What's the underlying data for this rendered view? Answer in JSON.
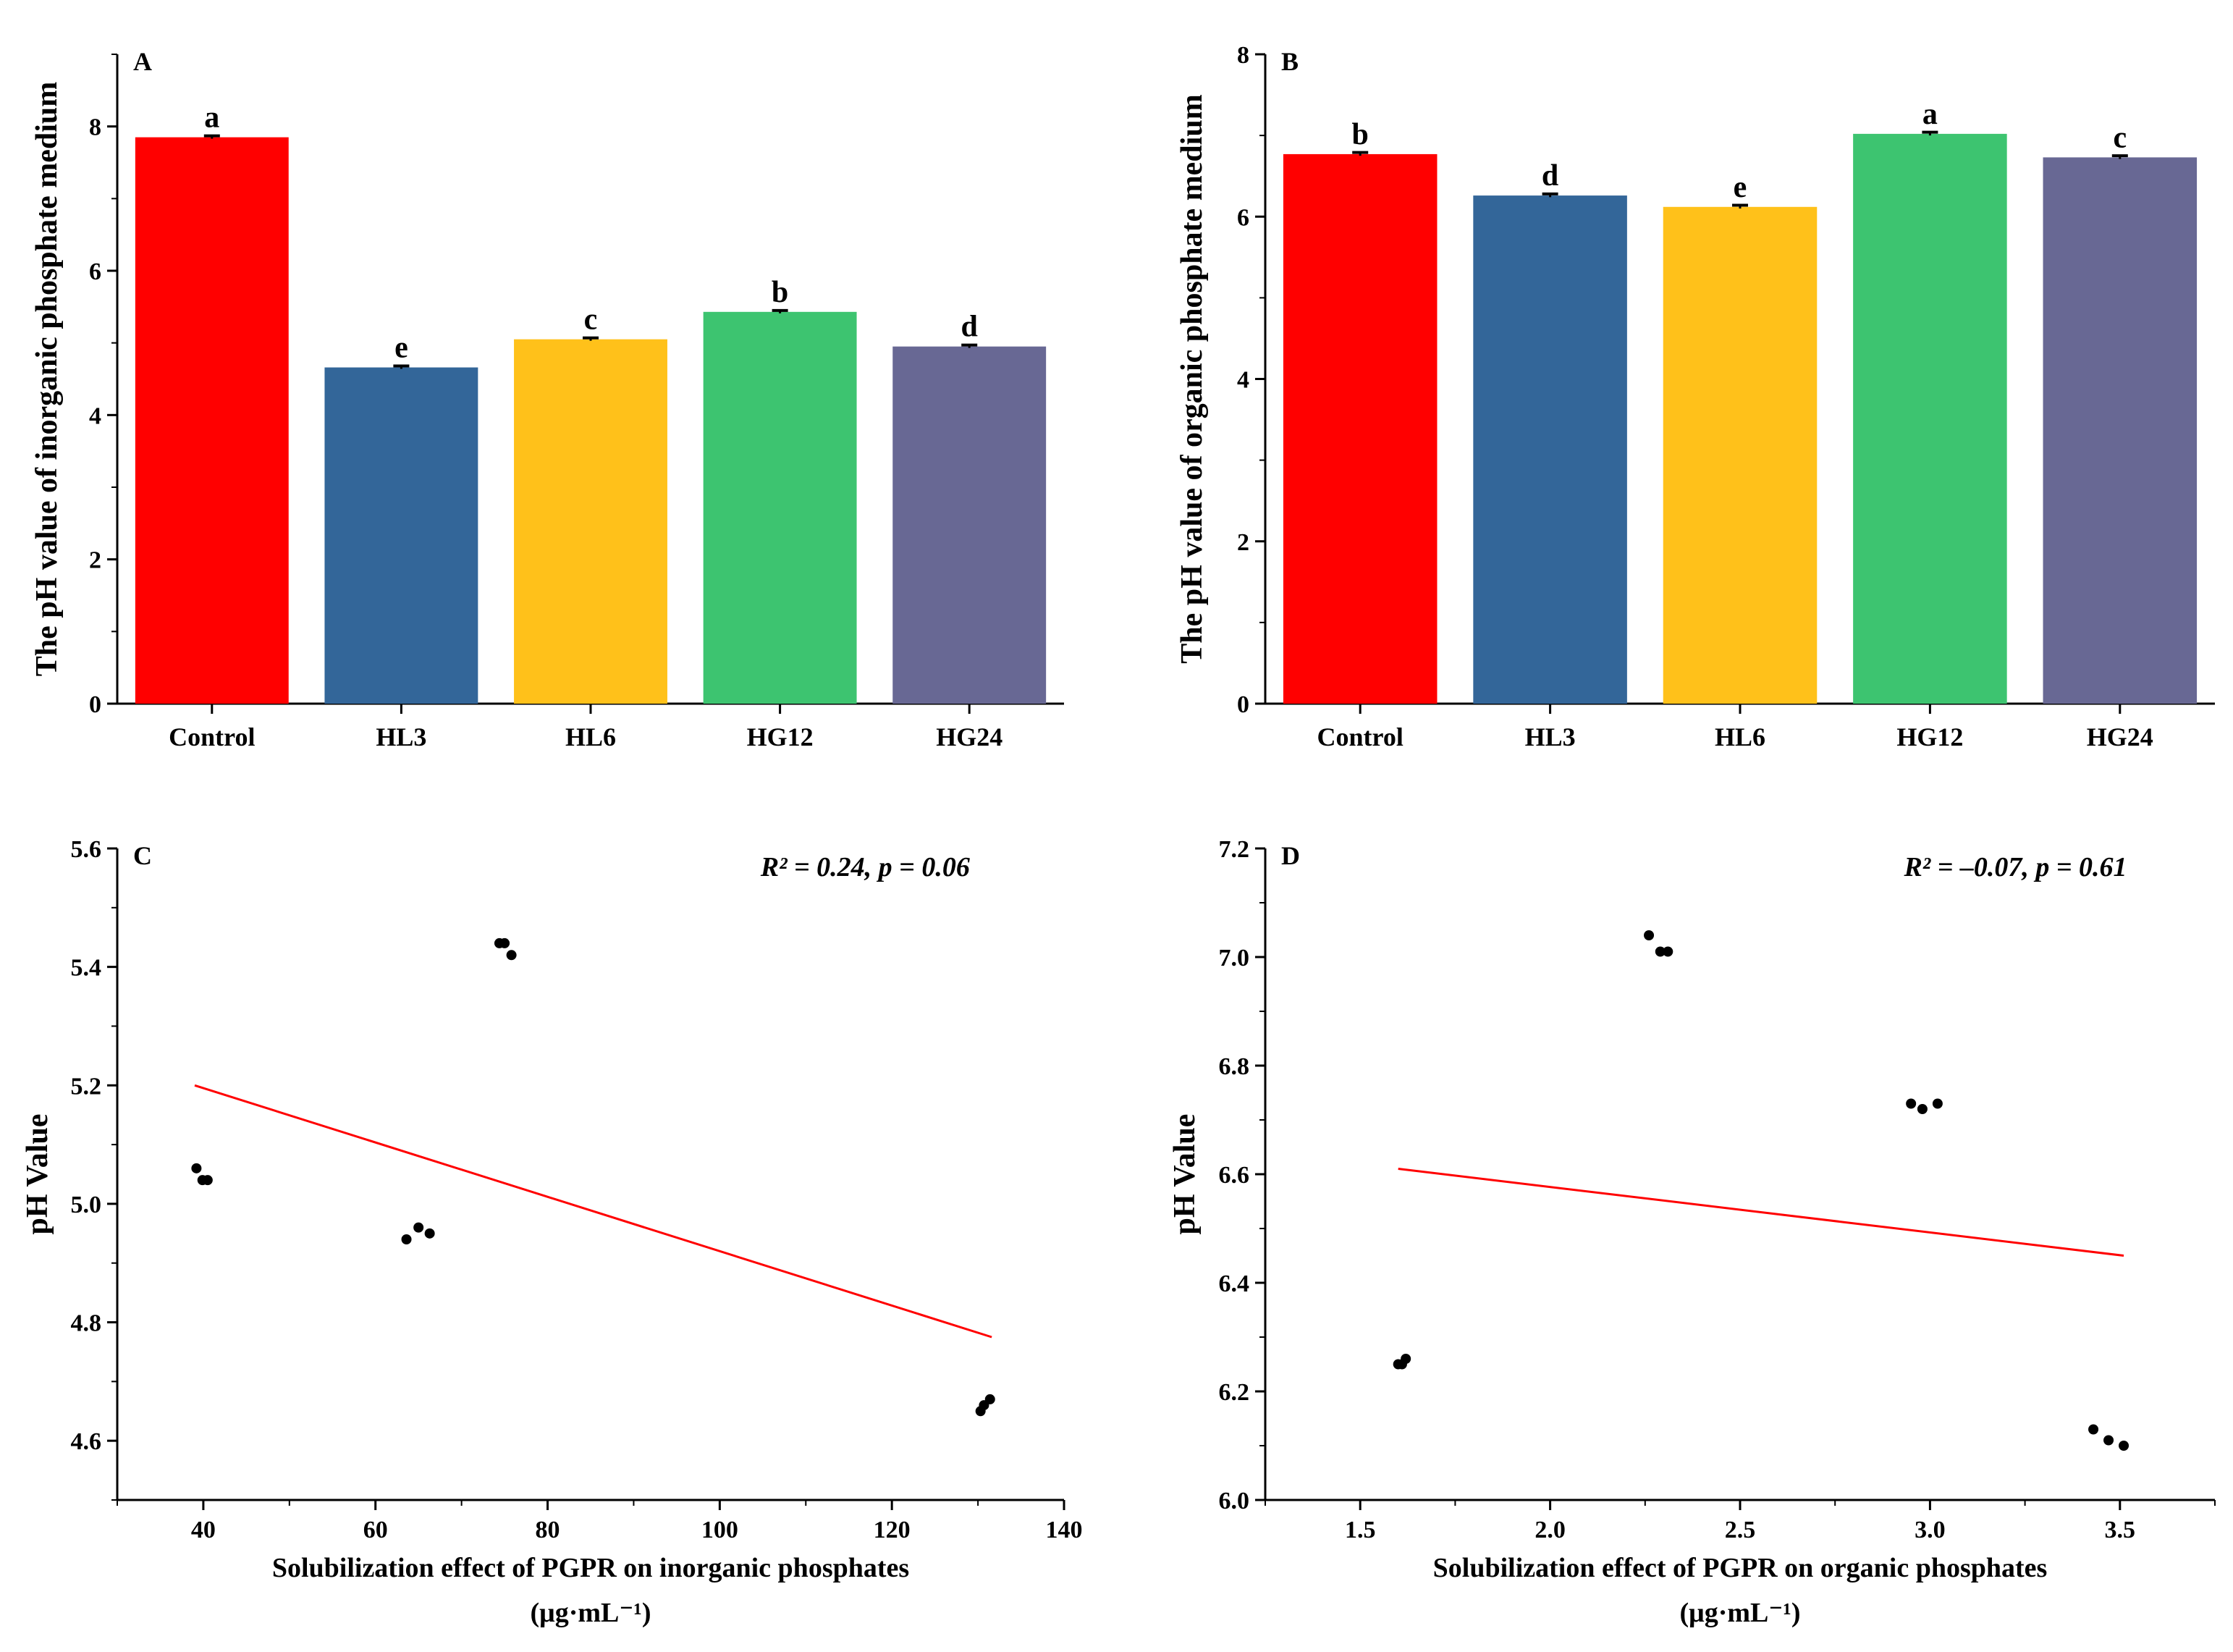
{
  "chart_data": [
    {
      "panel": "A",
      "type": "bar",
      "title": "",
      "panel_label": "A",
      "xlabel": "",
      "ylabel": "The pH value of inorganic phosphate medium",
      "categories": [
        "Control",
        "HL3",
        "HL6",
        "HG12",
        "HG24"
      ],
      "values": [
        7.85,
        4.66,
        5.05,
        5.43,
        4.95
      ],
      "errors": [
        0.02,
        0.02,
        0.02,
        0.02,
        0.02
      ],
      "letters": [
        "a",
        "e",
        "c",
        "b",
        "d"
      ],
      "colors": [
        "#FF0000",
        "#336699",
        "#FFC11A",
        "#3DC470",
        "#686894"
      ],
      "ylim": [
        0,
        9
      ],
      "yticks": [
        0,
        2,
        4,
        6,
        8
      ],
      "ytick_labels": [
        "0",
        "2",
        "4",
        "6",
        "8"
      ],
      "grid": false
    },
    {
      "panel": "B",
      "type": "bar",
      "title": "",
      "panel_label": "B",
      "xlabel": "",
      "ylabel": "The pH value of organic phosphate medium",
      "categories": [
        "Control",
        "HL3",
        "HL6",
        "HG12",
        "HG24"
      ],
      "values": [
        6.77,
        6.26,
        6.12,
        7.02,
        6.73
      ],
      "errors": [
        0.02,
        0.02,
        0.02,
        0.02,
        0.02
      ],
      "letters": [
        "b",
        "d",
        "e",
        "a",
        "c"
      ],
      "colors": [
        "#FF0000",
        "#336699",
        "#FFC11A",
        "#3DC470",
        "#686894"
      ],
      "ylim": [
        0,
        8
      ],
      "yticks": [
        0,
        2,
        4,
        6,
        8
      ],
      "ytick_labels": [
        "0",
        "2",
        "4",
        "6",
        "8"
      ],
      "grid": false
    },
    {
      "panel": "C",
      "type": "scatter",
      "title": "",
      "panel_label": "C",
      "xlabel": "Solubilization effect of PGPR on inorganic phosphates",
      "xlabel_unit": "(μg·mL⁻¹)",
      "ylabel": "pH Value",
      "annotation": "R² = 0.24, p = 0.06",
      "points": [
        {
          "x": 39.2,
          "y": 5.06
        },
        {
          "x": 39.9,
          "y": 5.04
        },
        {
          "x": 40.5,
          "y": 5.04
        },
        {
          "x": 63.6,
          "y": 4.94
        },
        {
          "x": 65.0,
          "y": 4.96
        },
        {
          "x": 66.3,
          "y": 4.95
        },
        {
          "x": 74.4,
          "y": 5.44
        },
        {
          "x": 75.0,
          "y": 5.44
        },
        {
          "x": 75.8,
          "y": 5.42
        },
        {
          "x": 130.3,
          "y": 4.65
        },
        {
          "x": 130.7,
          "y": 4.66
        },
        {
          "x": 131.4,
          "y": 4.67
        }
      ],
      "fit_line": [
        {
          "x": 39.0,
          "y": 5.2
        },
        {
          "x": 131.6,
          "y": 4.775
        }
      ],
      "fit_color": "#FF0000",
      "xlim": [
        30,
        140
      ],
      "ylim": [
        4.5,
        5.6
      ],
      "xticks": [
        40,
        60,
        80,
        100,
        120,
        140
      ],
      "xtick_labels": [
        "40",
        "60",
        "80",
        "100",
        "120",
        "140"
      ],
      "yticks": [
        4.6,
        4.8,
        5.0,
        5.2,
        5.4,
        5.6
      ],
      "ytick_labels": [
        "4.6",
        "4.8",
        "5.0",
        "5.2",
        "5.4",
        "5.6"
      ],
      "grid": false
    },
    {
      "panel": "D",
      "type": "scatter",
      "title": "",
      "panel_label": "D",
      "xlabel": "Solubilization effect of PGPR on organic phosphates",
      "xlabel_unit": "(μg·mL⁻¹)",
      "ylabel": "pH Value",
      "annotation": "R² = –0.07, p = 0.61",
      "points": [
        {
          "x": 1.6,
          "y": 6.25
        },
        {
          "x": 1.61,
          "y": 6.25
        },
        {
          "x": 1.62,
          "y": 6.26
        },
        {
          "x": 2.26,
          "y": 7.04
        },
        {
          "x": 2.29,
          "y": 7.01
        },
        {
          "x": 2.31,
          "y": 7.01
        },
        {
          "x": 2.95,
          "y": 6.73
        },
        {
          "x": 2.98,
          "y": 6.72
        },
        {
          "x": 3.02,
          "y": 6.73
        },
        {
          "x": 3.43,
          "y": 6.13
        },
        {
          "x": 3.47,
          "y": 6.11
        },
        {
          "x": 3.51,
          "y": 6.1
        }
      ],
      "fit_line": [
        {
          "x": 1.6,
          "y": 6.61
        },
        {
          "x": 3.51,
          "y": 6.45
        }
      ],
      "fit_color": "#FF0000",
      "xlim": [
        1.25,
        3.75
      ],
      "ylim": [
        6.0,
        7.2
      ],
      "xticks": [
        1.5,
        2.0,
        2.5,
        3.0,
        3.5
      ],
      "xtick_labels": [
        "1.5",
        "2.0",
        "2.5",
        "3.0",
        "3.5"
      ],
      "yticks": [
        6.0,
        6.2,
        6.4,
        6.6,
        6.8,
        7.0,
        7.2
      ],
      "ytick_labels": [
        "6.0",
        "6.2",
        "6.4",
        "6.6",
        "6.8",
        "7.0",
        "7.2"
      ],
      "grid": false
    }
  ]
}
